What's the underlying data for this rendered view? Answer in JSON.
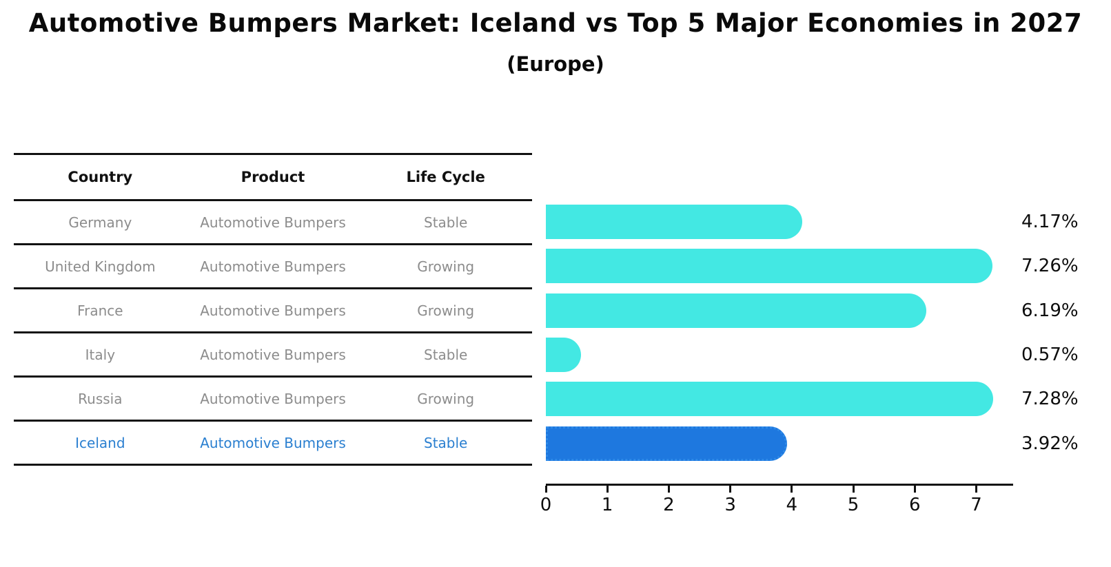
{
  "title": "Automotive Bumpers Market: Iceland vs Top 5 Major Economies in 2027",
  "subtitle": "(Europe)",
  "table": {
    "headers": [
      "Country",
      "Product",
      "Life Cycle"
    ],
    "rows": [
      {
        "country": "Germany",
        "product": "Automotive Bumpers",
        "life_cycle": "Stable"
      },
      {
        "country": "United Kingdom",
        "product": "Automotive Bumpers",
        "life_cycle": "Growing"
      },
      {
        "country": "France",
        "product": "Automotive Bumpers",
        "life_cycle": "Growing"
      },
      {
        "country": "Italy",
        "product": "Automotive Bumpers",
        "life_cycle": "Stable"
      },
      {
        "country": "Russia",
        "product": "Automotive Bumpers",
        "life_cycle": "Growing"
      },
      {
        "country": "Iceland",
        "product": "Automotive Bumpers",
        "life_cycle": "Stable"
      }
    ],
    "highlighted_row": "Iceland"
  },
  "chart_data": {
    "type": "bar",
    "orientation": "horizontal",
    "title": "Automotive Bumpers Market: Iceland vs Top 5 Major Economies in 2027",
    "subtitle": "(Europe)",
    "categories": [
      "Germany",
      "United Kingdom",
      "France",
      "Italy",
      "Russia",
      "Iceland"
    ],
    "values": [
      4.17,
      7.26,
      6.19,
      0.57,
      7.28,
      3.92
    ],
    "value_labels": [
      "4.17%",
      "7.26%",
      "6.19%",
      "0.57%",
      "7.28%",
      "3.92%"
    ],
    "x_ticks": [
      0,
      1,
      2,
      3,
      4,
      5,
      6,
      7
    ],
    "xlim": [
      0,
      7.6
    ],
    "grid": false,
    "legend": "none",
    "highlighted_category": "Iceland",
    "bar_color": "#43e8e3",
    "highlight_bar_color": "#1e78df",
    "highlight_border_color": "#2e8ae8"
  },
  "colors": {
    "background": "#ffffff",
    "title_text": "#0a0a0a",
    "table_rule": "#111111",
    "table_text_muted": "#8c8c8c",
    "highlight_text": "#2a7fd0",
    "axis": "#111111"
  }
}
